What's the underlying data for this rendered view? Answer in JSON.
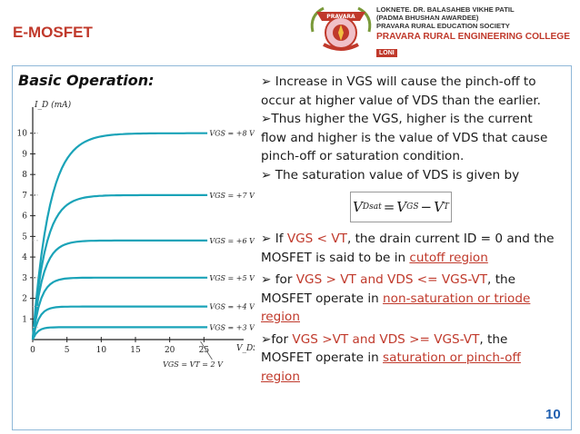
{
  "header": {
    "title": "E-MOSFET"
  },
  "college": {
    "line1": "LOKNETE. DR. BALASAHEB VIKHE PATIL",
    "line2": "(PADMA BHUSHAN AWARDEE)",
    "line3": "PRAVARA RURAL EDUCATION SOCIETY",
    "name": "PRAVARA RURAL ENGINEERING COLLEGE",
    "badge": "LONI",
    "logo_text": "PRAVARA"
  },
  "slide": {
    "heading": "Basic Operation:",
    "page_number": "10",
    "p1": "Increase in VGS will cause the pinch-off to occur at higher value of VDS than the earlier.",
    "p2": "Thus higher the VGS, higher is the current flow and higher is the value of VDS that cause pinch-off or saturation condition.",
    "p3": "The saturation value of VDS is given by",
    "formula": {
      "v": "V",
      "dsat": "Dsat",
      "eq": "=",
      "vgs_v": "V",
      "gs": "GS",
      "minus": "−",
      "vt_v": "V",
      "t": "T"
    },
    "p4a": "If ",
    "p4b": "VGS < VT",
    "p4c": ", the drain current ID = 0 and the MOSFET is said to be in ",
    "p4d": "cutoff region",
    "p5a": "for ",
    "p5b": "VGS > VT and VDS <= VGS-VT",
    "p5c": ", the MOSFET operate in ",
    "p5d": "non-saturation or triode region",
    "p6a": "for ",
    "p6b": "VGS >VT and VDS >= VGS-VT",
    "p6c": ", the MOSFET operate in ",
    "p6d": "saturation or pinch-off region"
  },
  "chart_data": {
    "type": "line",
    "ylabel": "I_D (mA)",
    "xlabel": "V_DS",
    "x_ticks": [
      "0",
      "5",
      "10",
      "15",
      "20",
      "25"
    ],
    "y_ticks": [
      "1",
      "2",
      "3",
      "4",
      "5",
      "6",
      "7",
      "8",
      "9",
      "10"
    ],
    "xlim": [
      0,
      30
    ],
    "ylim": [
      0,
      11
    ],
    "series": [
      {
        "name": "V_GS = +8 V",
        "isat": 10,
        "label": "VGS = +8 V"
      },
      {
        "name": "V_GS = +7 V",
        "isat": 7,
        "label": "VGS = +7 V"
      },
      {
        "name": "V_GS = +6 V",
        "isat": 4.8,
        "label": "VGS = +6 V"
      },
      {
        "name": "V_GS = +5 V",
        "isat": 3.0,
        "label": "VGS = +5 V"
      },
      {
        "name": "V_GS = +4 V",
        "isat": 1.6,
        "label": "VGS = +4 V"
      },
      {
        "name": "V_GS = +3 V",
        "isat": 0.6,
        "label": "VGS = +3 V"
      }
    ],
    "cutoff_label": "VGS = VT = 2 V",
    "grid": false
  }
}
